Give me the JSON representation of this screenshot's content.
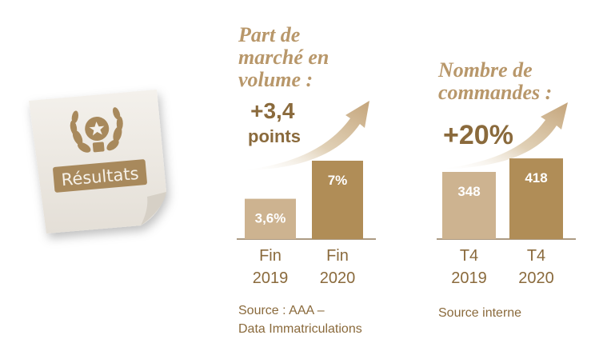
{
  "badge": {
    "label": "Résultats"
  },
  "colors": {
    "gold_dark": "#B08D57",
    "gold_light": "#CDB390",
    "heading": "#B8976A",
    "text": "#8A6A3C",
    "arrow": "#CBB08A"
  },
  "chart_data": [
    {
      "type": "bar",
      "title_lines": [
        "Part de",
        "marché en",
        "volume :"
      ],
      "highlight_lines": [
        "+3,4",
        "points"
      ],
      "categories": [
        [
          "Fin",
          "2019"
        ],
        [
          "Fin",
          "2020"
        ]
      ],
      "values": [
        3.6,
        7
      ],
      "value_labels": [
        "3,6%",
        "7%"
      ],
      "ylim": [
        0,
        10
      ],
      "source_lines": [
        "Source : AAA –",
        "Data Immatriculations"
      ]
    },
    {
      "type": "bar",
      "title_lines": [
        "Nombre de",
        "commandes :"
      ],
      "highlight_lines": [
        "+20%"
      ],
      "categories": [
        [
          "T4",
          "2019"
        ],
        [
          "T4",
          "2020"
        ]
      ],
      "values": [
        348,
        418
      ],
      "value_labels": [
        "348",
        "418"
      ],
      "ylim": [
        0,
        580
      ],
      "source_lines": [
        "Source interne"
      ]
    }
  ]
}
